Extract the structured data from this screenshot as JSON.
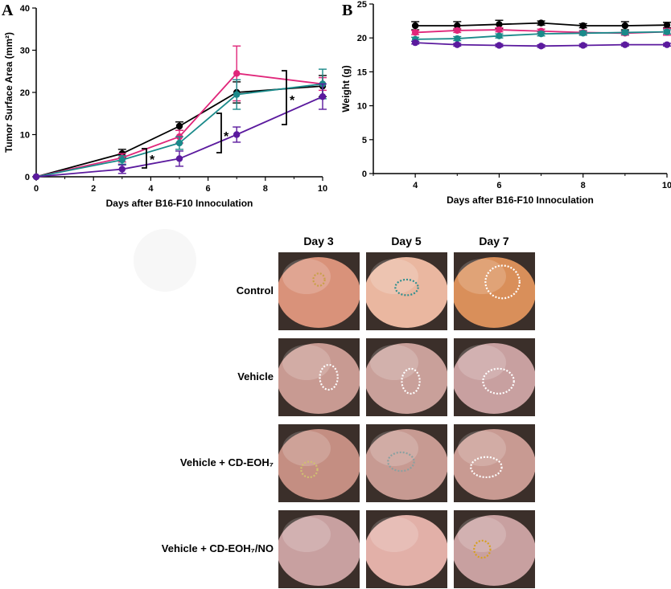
{
  "panels": {
    "a_letter": "A",
    "b_letter": "B"
  },
  "chart_data": [
    {
      "type": "line",
      "panel": "A",
      "xlabel": "Days after B16-F10 Innoculation",
      "ylabel": "Tumor Surface Area (mm²)",
      "xlim": [
        0,
        10
      ],
      "ylim": [
        0,
        40
      ],
      "xticks": [
        0,
        2,
        4,
        6,
        8,
        10
      ],
      "yticks": [
        0,
        10,
        20,
        30,
        40
      ],
      "series": [
        {
          "name": "Control",
          "color": "#000000",
          "x": [
            0,
            3,
            5,
            7,
            10
          ],
          "y": [
            0,
            5.5,
            12,
            20,
            21.5
          ],
          "err": [
            0,
            1.0,
            1.0,
            2.5,
            2.5
          ]
        },
        {
          "name": "Vehicle",
          "color": "#e0267a",
          "x": [
            0,
            3,
            5,
            7,
            10
          ],
          "y": [
            0,
            4.5,
            9.5,
            24.5,
            22
          ],
          "err": [
            0,
            1.0,
            1.5,
            6.5,
            1.5
          ]
        },
        {
          "name": "Vehicle + CD-EOH7",
          "color": "#1a8a8a",
          "x": [
            0,
            3,
            5,
            7,
            10
          ],
          "y": [
            0,
            4.0,
            8,
            19.5,
            22
          ],
          "err": [
            0,
            1.0,
            1.5,
            3.5,
            3.5
          ]
        },
        {
          "name": "Vehicle + CD-EOH7/NO",
          "color": "#5b1a9e",
          "x": [
            0,
            3,
            5,
            7,
            10
          ],
          "y": [
            0,
            1.8,
            4.3,
            10,
            19
          ],
          "err": [
            0,
            1.0,
            1.8,
            1.8,
            3.0
          ]
        }
      ],
      "annotations": [
        "*",
        "*",
        "*"
      ]
    },
    {
      "type": "line",
      "panel": "B",
      "xlabel": "Days after B16-F10 Innoculation",
      "ylabel": "Weight (g)",
      "xlim": [
        3,
        10
      ],
      "ylim": [
        0,
        25
      ],
      "xticks": [
        4,
        6,
        8,
        10
      ],
      "yticks": [
        0,
        5,
        10,
        15,
        20,
        25
      ],
      "series": [
        {
          "name": "Control",
          "color": "#000000",
          "x": [
            4,
            5,
            6,
            7,
            8,
            9,
            10
          ],
          "y": [
            21.8,
            21.8,
            22.0,
            22.2,
            21.8,
            21.8,
            21.9
          ],
          "err": [
            0.6,
            0.6,
            0.6,
            0.3,
            0.3,
            0.6,
            0.4
          ]
        },
        {
          "name": "Vehicle",
          "color": "#e0267a",
          "x": [
            4,
            5,
            6,
            7,
            8,
            9,
            10
          ],
          "y": [
            20.8,
            21.1,
            21.2,
            21.0,
            20.8,
            20.7,
            20.9
          ],
          "err": [
            0.3,
            0.3,
            0.3,
            0.3,
            0.3,
            0.3,
            0.5
          ]
        },
        {
          "name": "Vehicle + CD-EOH7",
          "color": "#1a8a8a",
          "x": [
            4,
            5,
            6,
            7,
            8,
            9,
            10
          ],
          "y": [
            19.8,
            19.9,
            20.3,
            20.6,
            20.7,
            20.8,
            20.9
          ],
          "err": [
            0.3,
            0.3,
            0.3,
            0.3,
            0.3,
            0.3,
            0.3
          ]
        },
        {
          "name": "Vehicle + CD-EOH7/NO",
          "color": "#5b1a9e",
          "x": [
            4,
            5,
            6,
            7,
            8,
            9,
            10
          ],
          "y": [
            19.3,
            19.0,
            18.9,
            18.8,
            18.9,
            19.0,
            19.0
          ],
          "err": [
            0.2,
            0.2,
            0.2,
            0.2,
            0.2,
            0.2,
            0.2
          ]
        }
      ]
    }
  ],
  "photo_grid": {
    "columns": [
      "Day 3",
      "Day 5",
      "Day 7"
    ],
    "rows": [
      {
        "label": "Control",
        "skin": [
          "#d9927a",
          "#eab7a0",
          "#d98f5a"
        ],
        "tumor": [
          [
            0.5,
            0.35,
            0.14,
            0.16,
            "#c9a04a"
          ],
          [
            0.5,
            0.45,
            0.28,
            0.2,
            "#2f8f8f"
          ],
          [
            0.6,
            0.38,
            0.42,
            0.42,
            "#ffffff"
          ]
        ]
      },
      {
        "label": "Vehicle",
        "skin": [
          "#c89a92",
          "#c9a09a",
          "#c8a0a0"
        ],
        "tumor": [
          [
            0.62,
            0.5,
            0.22,
            0.32,
            "#ffffff"
          ],
          [
            0.55,
            0.55,
            0.22,
            0.32,
            "#ffffff"
          ],
          [
            0.55,
            0.55,
            0.38,
            0.32,
            "#ffffff"
          ]
        ]
      },
      {
        "label": "Vehicle + CD-EOH₇",
        "skin": [
          "#c48e82",
          "#c79a92",
          "#c89a92"
        ],
        "tumor": [
          [
            0.38,
            0.58,
            0.2,
            0.2,
            "#d0c070"
          ],
          [
            0.43,
            0.48,
            0.32,
            0.24,
            "#8aa0a0"
          ],
          [
            0.4,
            0.55,
            0.38,
            0.26,
            "#ffffff"
          ]
        ]
      },
      {
        "label": "Vehicle + CD-EOH₇/NO",
        "skin": [
          "#c8a0a0",
          "#e2b0a8",
          "#c8a0a0"
        ],
        "tumor": [
          null,
          null,
          [
            0.35,
            0.5,
            0.2,
            0.22,
            "#d7a020"
          ]
        ]
      }
    ]
  }
}
